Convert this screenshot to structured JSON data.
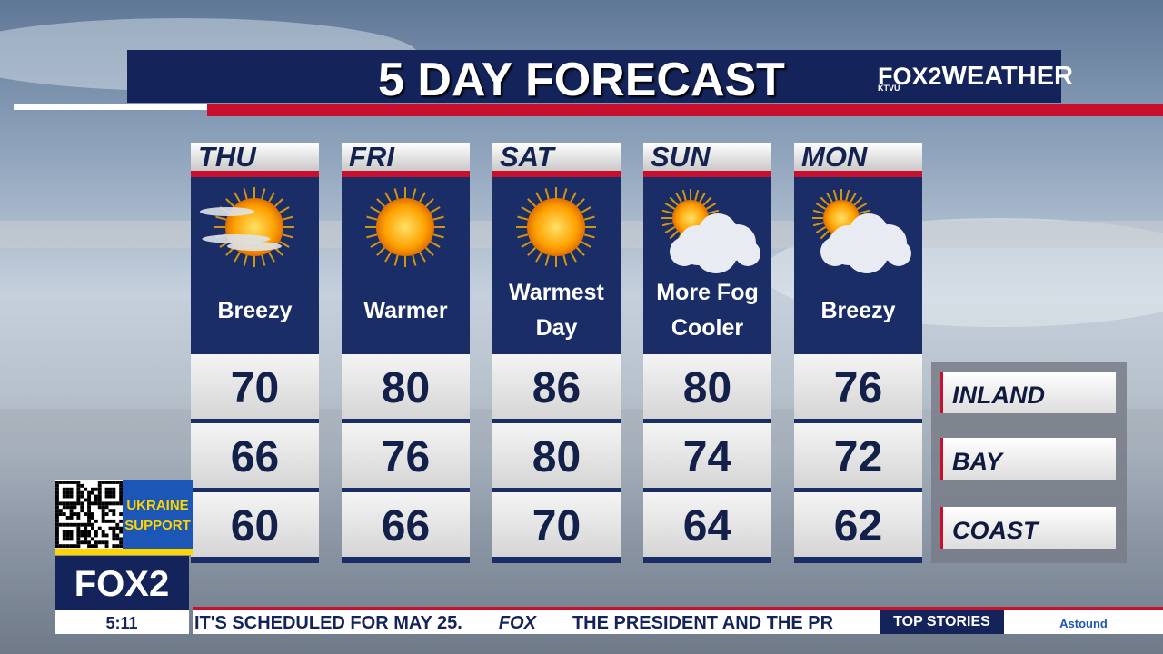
{
  "header": {
    "title": "5 DAY FORECAST",
    "logo": {
      "brand": "FOX",
      "station": "KTVU",
      "channel": "2",
      "label": "WEATHER"
    }
  },
  "days": [
    {
      "day": "THU",
      "condition": [
        "Breezy"
      ],
      "temps": [
        "70",
        "66",
        "60"
      ]
    },
    {
      "day": "FRI",
      "condition": [
        "Warmer"
      ],
      "temps": [
        "80",
        "76",
        "66"
      ]
    },
    {
      "day": "SAT",
      "condition": [
        "Warmest",
        "Day"
      ],
      "temps": [
        "86",
        "80",
        "70"
      ]
    },
    {
      "day": "SUN",
      "condition": [
        "More Fog",
        "Cooler"
      ],
      "temps": [
        "80",
        "74",
        "64"
      ]
    },
    {
      "day": "MON",
      "condition": [
        "Breezy"
      ],
      "temps": [
        "76",
        "72",
        "62"
      ]
    }
  ],
  "regions": [
    "INLAND",
    "BAY",
    "COAST"
  ],
  "sidebar": {
    "promo": [
      "UKRAINE",
      "SUPPORT"
    ],
    "logo": "FOX",
    "channel": "2",
    "time": "5:11"
  },
  "ticker": {
    "items": [
      "IT'S SCHEDULED FOR MAY 25.",
      "FOX",
      "THE PRESIDENT AND THE PR"
    ],
    "section": "TOP STORIES",
    "sponsor": "Astound"
  }
}
